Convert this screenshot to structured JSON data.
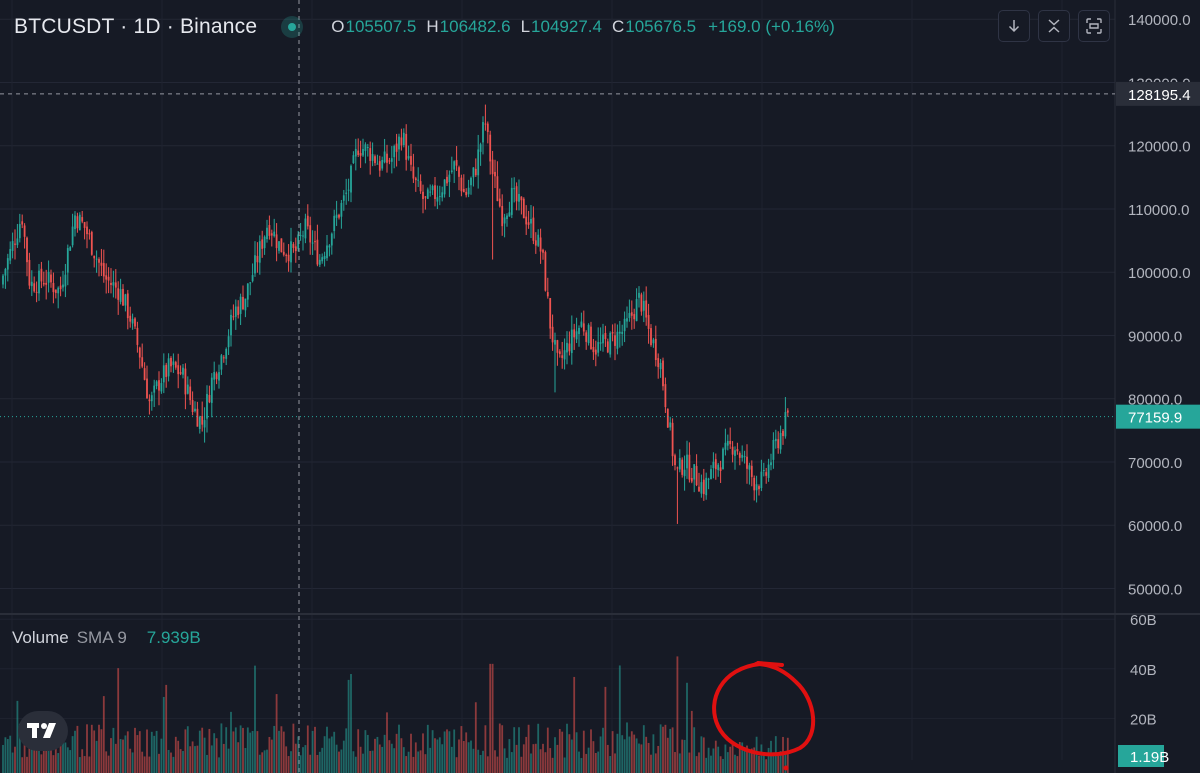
{
  "header": {
    "symbol": "BTCUSDT · 1D · Binance",
    "ohlc": [
      {
        "key": "O",
        "value": "105507.5"
      },
      {
        "key": "H",
        "value": "106482.6"
      },
      {
        "key": "L",
        "value": "104927.4"
      },
      {
        "key": "C",
        "value": "105676.5"
      }
    ],
    "change": "+169.0 (+0.16%)"
  },
  "toolbar": {
    "icons": [
      "arrow-down-icon",
      "collapse-icon",
      "fullscreen-icon"
    ]
  },
  "volume_header": {
    "title": "Volume",
    "indicator": "SMA 9",
    "value": "7.939B"
  },
  "colors": {
    "background": "#161a25",
    "up": "#26a69a",
    "down": "#ef5350",
    "crosshair_label_bg": "#2a2e39",
    "price_label_bg": "#26a69a",
    "annotation": "#e01010"
  },
  "chart_data": [
    {
      "type": "candlestick",
      "price_axis": {
        "ticks": [
          50000,
          60000,
          70000,
          80000,
          90000,
          100000,
          110000,
          120000,
          130000,
          140000
        ],
        "tick_labels": [
          "50000.0",
          "60000.0",
          "70000.0",
          "80000.0",
          "90000.0",
          "100000.0",
          "110000.0",
          "120000.0",
          "130000.0",
          "140000.0"
        ],
        "range": [
          46000,
          143500
        ]
      },
      "crosshair_price_label": "128195.4",
      "current_price_label": "77159.9",
      "current_price": 77159.9,
      "crosshair_price": 128195.4,
      "grid": true,
      "close_path": [
        [
          0,
          98000
        ],
        [
          10,
          103000
        ],
        [
          22,
          109000
        ],
        [
          30,
          98000
        ],
        [
          45,
          99000
        ],
        [
          60,
          97000
        ],
        [
          75,
          109000
        ],
        [
          85,
          107000
        ],
        [
          95,
          103000
        ],
        [
          105,
          99000
        ],
        [
          120,
          97000
        ],
        [
          130,
          93000
        ],
        [
          140,
          87000
        ],
        [
          150,
          79000
        ],
        [
          160,
          83000
        ],
        [
          170,
          85000
        ],
        [
          182,
          84000
        ],
        [
          192,
          79000
        ],
        [
          202,
          76000
        ],
        [
          212,
          83000
        ],
        [
          222,
          87000
        ],
        [
          235,
          94000
        ],
        [
          245,
          96000
        ],
        [
          255,
          101000
        ],
        [
          268,
          108000
        ],
        [
          280,
          104000
        ],
        [
          295,
          103000
        ],
        [
          305,
          107000
        ],
        [
          320,
          102000
        ],
        [
          335,
          108000
        ],
        [
          348,
          113000
        ],
        [
          358,
          120000
        ],
        [
          370,
          119000
        ],
        [
          380,
          117000
        ],
        [
          392,
          118000
        ],
        [
          402,
          122000
        ],
        [
          412,
          115000
        ],
        [
          425,
          111000
        ],
        [
          440,
          113000
        ],
        [
          455,
          117000
        ],
        [
          465,
          112000
        ],
        [
          475,
          116000
        ],
        [
          485,
          124000
        ],
        [
          492,
          116000
        ],
        [
          502,
          109000
        ],
        [
          512,
          112000
        ],
        [
          522,
          110000
        ],
        [
          532,
          107000
        ],
        [
          542,
          103000
        ],
        [
          550,
          92000
        ],
        [
          558,
          85000
        ],
        [
          570,
          89000
        ],
        [
          582,
          92000
        ],
        [
          595,
          88000
        ],
        [
          610,
          89000
        ],
        [
          625,
          91000
        ],
        [
          640,
          96000
        ],
        [
          650,
          90000
        ],
        [
          660,
          86000
        ],
        [
          668,
          77000
        ],
        [
          676,
          68000
        ],
        [
          684,
          70000
        ],
        [
          694,
          68000
        ],
        [
          704,
          66000
        ],
        [
          714,
          69000
        ],
        [
          724,
          71000
        ],
        [
          734,
          73000
        ],
        [
          744,
          70000
        ],
        [
          754,
          67000
        ],
        [
          764,
          67000
        ],
        [
          774,
          72000
        ],
        [
          782,
          75000
        ],
        [
          788,
          77159.9
        ]
      ]
    },
    {
      "type": "bar",
      "name": "Volume",
      "volume_axis": {
        "ticks": [
          20,
          40,
          60
        ],
        "tick_labels": [
          "20B",
          "40B",
          "60B"
        ],
        "unit": "B"
      },
      "current_volume_label": "1.19B",
      "sma_value": "7.939B"
    }
  ]
}
